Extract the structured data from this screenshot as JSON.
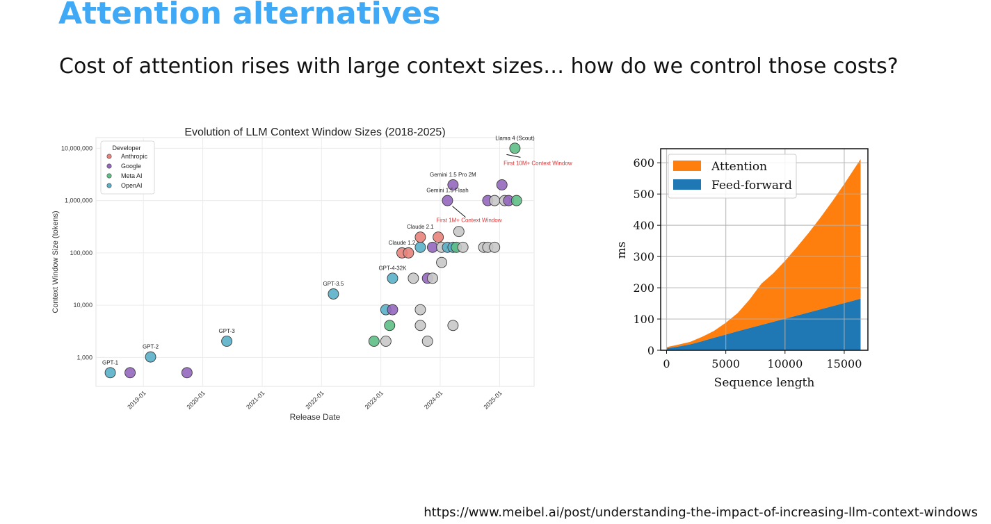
{
  "slide": {
    "title": "Attention alternatives",
    "subtitle": "Cost of attention rises with large context sizes… how do we control those costs?",
    "source_url": "https://www.meibel.ai/post/understanding-the-impact-of-increasing-llm-context-windows"
  },
  "chart_data": [
    {
      "type": "scatter",
      "title": "Evolution of LLM Context Window Sizes (2018-2025)",
      "xlabel": "Release Date",
      "ylabel": "Context Window Size (tokens)",
      "yscale": "log",
      "xlim": [
        "2018-03-15",
        "2025-08-01"
      ],
      "ylim": [
        280,
        16000000
      ],
      "xticks": [
        "2019-01",
        "2020-01",
        "2021-01",
        "2022-01",
        "2023-01",
        "2024-01",
        "2025-01"
      ],
      "yticks": [
        1000,
        10000,
        100000,
        1000000,
        10000000
      ],
      "ytick_labels": [
        "1,000",
        "10,000",
        "100,000",
        "1,000,000",
        "10,000,000"
      ],
      "grid": true,
      "legend": {
        "title": "Developer",
        "placement": "top-left",
        "entries": [
          {
            "name": "Anthropic",
            "color": "#e8837b"
          },
          {
            "name": "Google",
            "color": "#9467bd"
          },
          {
            "name": "Meta AI",
            "color": "#5fbf86"
          },
          {
            "name": "OpenAI",
            "color": "#5ab0c8"
          }
        ]
      },
      "colors": {
        "Other": "#c8c8c8"
      },
      "points": [
        {
          "date": "2018-06-11",
          "tokens": 512,
          "developer": "OpenAI",
          "label": "GPT-1"
        },
        {
          "date": "2018-10-11",
          "tokens": 512,
          "developer": "Google"
        },
        {
          "date": "2019-02-14",
          "tokens": 1024,
          "developer": "OpenAI",
          "label": "GPT-2"
        },
        {
          "date": "2019-09-26",
          "tokens": 512,
          "developer": "Google"
        },
        {
          "date": "2020-05-28",
          "tokens": 2048,
          "developer": "OpenAI",
          "label": "GPT-3"
        },
        {
          "date": "2022-03-15",
          "tokens": 16385,
          "developer": "OpenAI",
          "label": "GPT-3.5"
        },
        {
          "date": "2022-11-20",
          "tokens": 2048,
          "developer": "Meta AI"
        },
        {
          "date": "2023-02-01",
          "tokens": 2048,
          "developer": "Other"
        },
        {
          "date": "2023-02-24",
          "tokens": 4096,
          "developer": "Meta AI"
        },
        {
          "date": "2023-02-01",
          "tokens": 8192,
          "developer": "OpenAI"
        },
        {
          "date": "2023-03-14",
          "tokens": 8192,
          "developer": "Google"
        },
        {
          "date": "2023-03-14",
          "tokens": 32768,
          "developer": "OpenAI",
          "label": "GPT-4-32K"
        },
        {
          "date": "2023-05-11",
          "tokens": 100000,
          "developer": "Anthropic",
          "label": "Claude 1.2"
        },
        {
          "date": "2023-06-20",
          "tokens": 100000,
          "developer": "Anthropic"
        },
        {
          "date": "2023-07-20",
          "tokens": 32768,
          "developer": "Other"
        },
        {
          "date": "2023-09-01",
          "tokens": 4096,
          "developer": "Other"
        },
        {
          "date": "2023-09-01",
          "tokens": 8192,
          "developer": "Other"
        },
        {
          "date": "2023-09-01",
          "tokens": 128000,
          "developer": "OpenAI"
        },
        {
          "date": "2023-09-01",
          "tokens": 200000,
          "developer": "Anthropic",
          "label": "Claude 2.1"
        },
        {
          "date": "2023-10-15",
          "tokens": 2048,
          "developer": "Other"
        },
        {
          "date": "2023-10-15",
          "tokens": 32768,
          "developer": "Google"
        },
        {
          "date": "2023-11-15",
          "tokens": 32768,
          "developer": "Other"
        },
        {
          "date": "2023-11-15",
          "tokens": 128000,
          "developer": "Google"
        },
        {
          "date": "2023-12-20",
          "tokens": 200000,
          "developer": "Anthropic"
        },
        {
          "date": "2024-01-10",
          "tokens": 65536,
          "developer": "Other"
        },
        {
          "date": "2024-01-10",
          "tokens": 128000,
          "developer": "Other"
        },
        {
          "date": "2024-02-15",
          "tokens": 1000000,
          "developer": "Google",
          "label": "Gemini 1.5 Flash"
        },
        {
          "date": "2024-02-15",
          "tokens": 128000,
          "developer": "OpenAI"
        },
        {
          "date": "2024-03-20",
          "tokens": 2000000,
          "developer": "Google",
          "label": "Gemini 1.5 Pro 2M"
        },
        {
          "date": "2024-03-20",
          "tokens": 4096,
          "developer": "Other"
        },
        {
          "date": "2024-03-20",
          "tokens": 128000,
          "developer": "OpenAI"
        },
        {
          "date": "2024-04-10",
          "tokens": 128000,
          "developer": "Meta AI"
        },
        {
          "date": "2024-04-25",
          "tokens": 256000,
          "developer": "Other"
        },
        {
          "date": "2024-05-20",
          "tokens": 128000,
          "developer": "Other"
        },
        {
          "date": "2024-09-25",
          "tokens": 128000,
          "developer": "Other"
        },
        {
          "date": "2024-10-20",
          "tokens": 128000,
          "developer": "Other"
        },
        {
          "date": "2024-10-20",
          "tokens": 1000000,
          "developer": "Google"
        },
        {
          "date": "2024-12-01",
          "tokens": 128000,
          "developer": "Other"
        },
        {
          "date": "2024-12-01",
          "tokens": 1000000,
          "developer": "Other"
        },
        {
          "date": "2025-01-15",
          "tokens": 2000000,
          "developer": "Google"
        },
        {
          "date": "2025-02-01",
          "tokens": 1000000,
          "developer": "Other"
        },
        {
          "date": "2025-02-25",
          "tokens": 1000000,
          "developer": "Google"
        },
        {
          "date": "2025-04-05",
          "tokens": 10000000,
          "developer": "Meta AI",
          "label": "Llama 4 (Scout)"
        },
        {
          "date": "2025-04-15",
          "tokens": 1000000,
          "developer": "Meta AI"
        }
      ],
      "annotations": [
        {
          "text": "First 10M+ Context Window",
          "color": "#e03030",
          "target_date": "2025-04-05",
          "target_tokens": 10000000
        },
        {
          "text": "First 1M+ Context Window",
          "color": "#e03030",
          "target_date": "2024-02-15",
          "target_tokens": 1000000
        }
      ]
    },
    {
      "type": "area",
      "stacked": true,
      "xlabel": "Sequence length",
      "ylabel": "ms",
      "xlim": [
        -500,
        17000
      ],
      "ylim": [
        0,
        645
      ],
      "xticks": [
        0,
        5000,
        10000,
        15000
      ],
      "yticks": [
        0,
        100,
        200,
        300,
        400,
        500,
        600
      ],
      "grid": true,
      "legend": {
        "placement": "top-left"
      },
      "x": [
        0,
        1000,
        2000,
        3000,
        4000,
        5000,
        6000,
        7000,
        8000,
        9000,
        10000,
        11000,
        12000,
        13000,
        14000,
        15000,
        16384
      ],
      "series": [
        {
          "name": "Feed-forward",
          "color": "#1f77b4",
          "values": [
            6,
            12,
            19,
            29,
            40,
            50,
            61,
            71,
            81,
            91,
            101,
            111,
            121,
            131,
            141,
            151,
            165
          ]
        },
        {
          "name": "Attention",
          "color": "#ff7f0e",
          "values": [
            4,
            6,
            8,
            14,
            22,
            38,
            58,
            91,
            132,
            155,
            185,
            219,
            255,
            294,
            336,
            381,
            447
          ]
        }
      ]
    }
  ]
}
